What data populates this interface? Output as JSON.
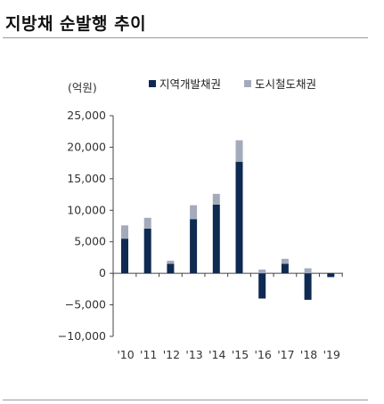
{
  "title": "지방채 순발행 추이",
  "chart_data": {
    "type": "bar",
    "stacked": true,
    "unit_label": "(억원)",
    "categories": [
      "'10",
      "'11",
      "'12",
      "'13",
      "'14",
      "'15",
      "'16",
      "'17",
      "'18",
      "'19"
    ],
    "series": [
      {
        "name": "지역개발채권",
        "color": "#0f2a52",
        "values": [
          5500,
          7100,
          1500,
          8600,
          10900,
          17700,
          -4000,
          1500,
          -4200,
          -600
        ]
      },
      {
        "name": "도시철도채권",
        "color": "#a3abbb",
        "values": [
          2100,
          1700,
          500,
          2200,
          1700,
          3400,
          600,
          800,
          800,
          0
        ]
      }
    ],
    "yticks": [
      "25,000",
      "20,000",
      "15,000",
      "10,000",
      "5,000",
      "0",
      "−5,000",
      "−10,000"
    ],
    "ylim": [
      -10000,
      25000
    ]
  }
}
